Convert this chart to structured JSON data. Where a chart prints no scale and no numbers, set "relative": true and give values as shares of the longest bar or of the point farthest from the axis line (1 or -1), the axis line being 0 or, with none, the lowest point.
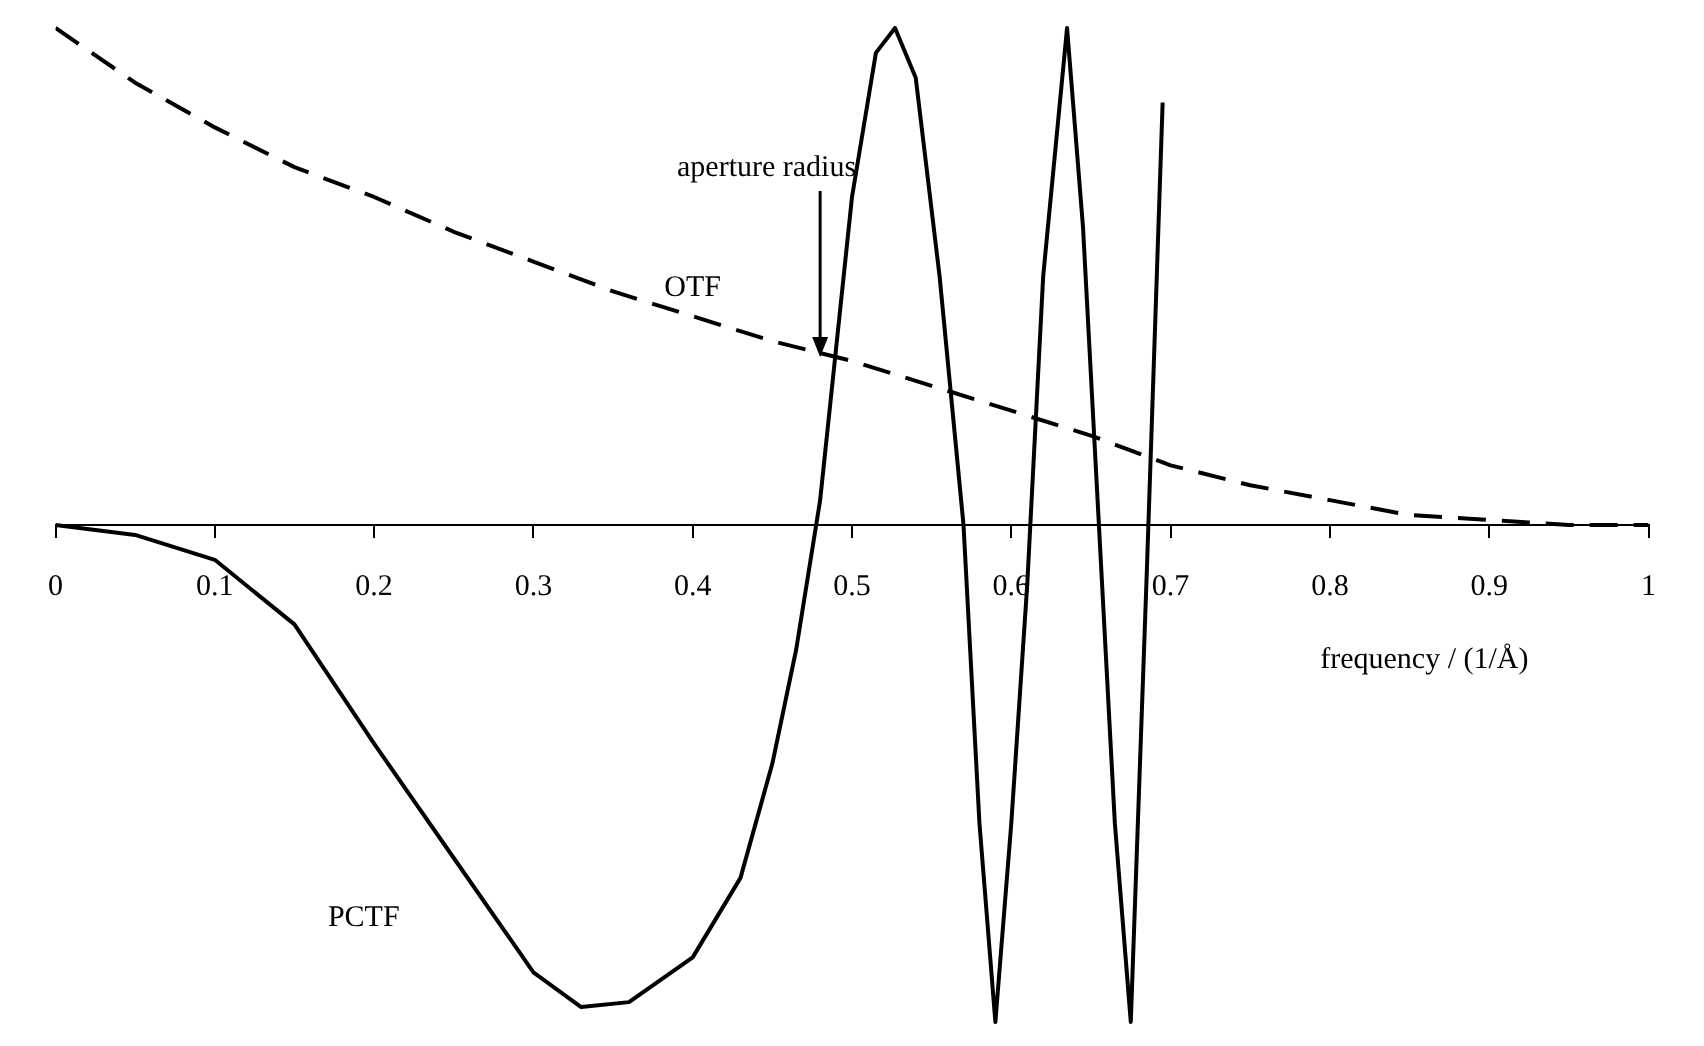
{
  "chart_data": {
    "type": "line",
    "relative": true,
    "xlabel": "frequency / (1/Å)",
    "xlim": [
      0,
      1
    ],
    "xticks": [
      0,
      0.1,
      0.2,
      0.3,
      0.4,
      0.5,
      0.6,
      0.7,
      0.8,
      0.9,
      1
    ],
    "grid": false,
    "legend": false,
    "marker": "none",
    "annotations": [
      {
        "text": "aperture radius",
        "x": 0.48,
        "y": 0.33
      }
    ],
    "series": [
      {
        "name": "OTF",
        "color": "#000000",
        "line_style": "dashed",
        "x": [
          0,
          0.05,
          0.1,
          0.15,
          0.2,
          0.25,
          0.3,
          0.35,
          0.4,
          0.45,
          0.5,
          0.55,
          0.6,
          0.65,
          0.7,
          0.75,
          0.8,
          0.85,
          0.9,
          0.95,
          1
        ],
        "values": [
          1,
          0.89,
          0.8,
          0.72,
          0.66,
          0.59,
          0.53,
          0.47,
          0.42,
          0.37,
          0.33,
          0.28,
          0.23,
          0.18,
          0.12,
          0.08,
          0.05,
          0.02,
          0.01,
          0,
          0
        ]
      },
      {
        "name": "PCTF",
        "color": "#000000",
        "line_style": "solid",
        "x": [
          0,
          0.05,
          0.1,
          0.15,
          0.2,
          0.25,
          0.3,
          0.33,
          0.36,
          0.4,
          0.43,
          0.45,
          0.465,
          0.48,
          0.5,
          0.515,
          0.527,
          0.54,
          0.555,
          0.57,
          0.58,
          0.59,
          0.6,
          0.61,
          0.62,
          0.635,
          0.645,
          0.655,
          0.665,
          0.675,
          0.685,
          0.695
        ],
        "values": [
          0,
          -0.02,
          -0.07,
          -0.2,
          -0.44,
          -0.67,
          -0.9,
          -0.97,
          -0.96,
          -0.87,
          -0.71,
          -0.48,
          -0.25,
          0.05,
          0.66,
          0.95,
          1,
          0.9,
          0.5,
          0,
          -0.6,
          -1,
          -0.6,
          -0.12,
          0.5,
          1,
          0.6,
          0,
          -0.6,
          -1,
          -0.1,
          0.85
        ]
      }
    ]
  }
}
